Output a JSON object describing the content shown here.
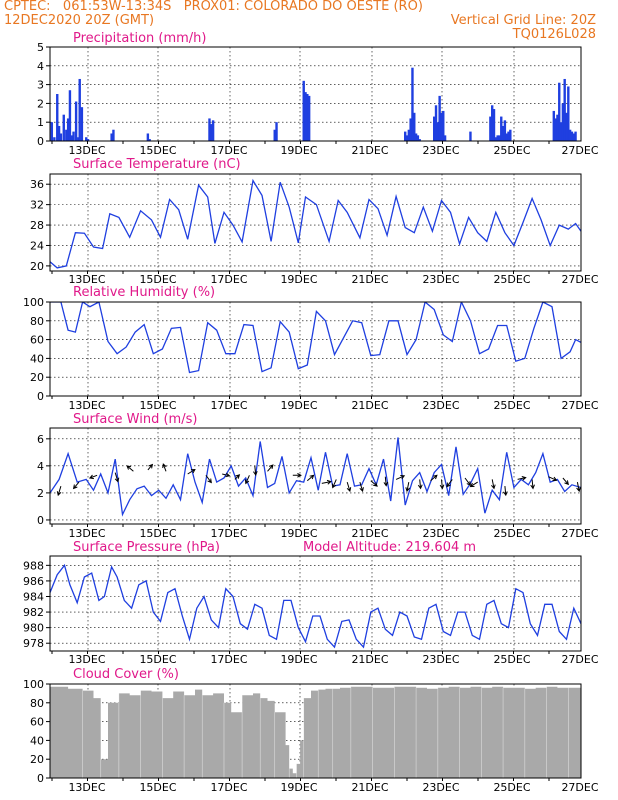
{
  "header": {
    "line1_left": "CPTEC:   061:53W-13:34S   PROX01: COLORADO DO OESTE (RO)",
    "line2_left": "12DEC2020 20Z (GMT)",
    "line2_right": "Vertical Grid Line: 20Z",
    "line3_right": "TQ0126L028"
  },
  "colors": {
    "accent": "#e87722",
    "title": "#e0198a",
    "series": "#1f3fe0",
    "cloud": "#a9a9a9"
  },
  "chart_data": [
    {
      "type": "bar",
      "title": "Precipitation (mm/h)",
      "ylim": [
        0,
        5
      ],
      "yticks": [
        0,
        1,
        2,
        3,
        4,
        5
      ],
      "xlim": [
        0,
        14.65
      ],
      "xticks": [
        "13DEC",
        "15DEC",
        "17DEC",
        "19DEC",
        "21DEC",
        "23DEC",
        "25DEC",
        "27DEC"
      ],
      "x": [
        0.05,
        0.12,
        0.2,
        0.25,
        0.3,
        0.38,
        0.45,
        0.5,
        0.55,
        0.6,
        0.65,
        0.72,
        0.78,
        0.82,
        0.88,
        1.0,
        1.05,
        1.7,
        1.75,
        2.7,
        2.75,
        4.4,
        4.45,
        4.5,
        6.2,
        6.25,
        7.0,
        7.05,
        7.1,
        7.15,
        9.8,
        9.85,
        9.9,
        9.95,
        10.0,
        10.05,
        10.1,
        10.15,
        10.2,
        10.6,
        10.65,
        10.7,
        10.75,
        10.8,
        10.85,
        10.9,
        11.6,
        12.15,
        12.2,
        12.25,
        12.3,
        12.35,
        12.4,
        12.45,
        12.5,
        12.55,
        12.6,
        12.65,
        12.7,
        13.9,
        13.95,
        14.0,
        14.05,
        14.1,
        14.15,
        14.2,
        14.25,
        14.3,
        14.35,
        14.4,
        14.45,
        14.5
      ],
      "values": [
        1.0,
        0.2,
        2.5,
        0.8,
        0.4,
        1.4,
        0.6,
        1.2,
        2.7,
        0.3,
        0.5,
        2.1,
        0.2,
        3.3,
        1.8,
        0.2,
        0.1,
        0.4,
        0.6,
        0.4,
        0.1,
        1.2,
        0.9,
        1.1,
        0.6,
        1.0,
        3.2,
        2.6,
        2.5,
        2.4,
        0.5,
        0.3,
        0.6,
        1.2,
        3.9,
        1.5,
        0.4,
        0.3,
        0.1,
        1.3,
        1.9,
        1.0,
        2.4,
        1.5,
        1.6,
        0.3,
        0.5,
        1.3,
        1.9,
        1.7,
        0.2,
        0.3,
        0.3,
        1.3,
        0.8,
        1.1,
        0.4,
        0.5,
        0.6,
        1.6,
        1.2,
        1.4,
        3.1,
        1.0,
        2.0,
        3.3,
        1.5,
        2.9,
        0.6,
        0.5,
        0.4,
        0.5
      ]
    },
    {
      "type": "line",
      "title": "Surface Temperature (nC)",
      "ylim": [
        19,
        38
      ],
      "yticks": [
        20,
        24,
        28,
        32,
        36
      ],
      "xlim": [
        0,
        14.65
      ],
      "xticks": [
        "13DEC",
        "15DEC",
        "17DEC",
        "19DEC",
        "21DEC",
        "23DEC",
        "25DEC",
        "27DEC"
      ],
      "x": [
        0,
        0.2,
        0.45,
        0.7,
        0.95,
        1.2,
        1.45,
        1.65,
        1.9,
        2.2,
        2.5,
        2.8,
        3.05,
        3.3,
        3.55,
        3.8,
        4.1,
        4.35,
        4.55,
        4.8,
        5.05,
        5.3,
        5.6,
        5.85,
        6.1,
        6.35,
        6.6,
        6.85,
        7.05,
        7.35,
        7.7,
        7.95,
        8.2,
        8.55,
        8.8,
        9.05,
        9.3,
        9.55,
        9.8,
        10.05,
        10.3,
        10.55,
        10.8,
        11.05,
        11.3,
        11.55,
        11.8,
        12.05,
        12.3,
        12.55,
        12.8,
        13.05,
        13.3,
        13.55,
        13.8,
        14.05,
        14.3,
        14.5,
        14.65
      ],
      "values": [
        20.8,
        19.6,
        20.0,
        26.5,
        26.4,
        23.7,
        23.4,
        30.2,
        29.5,
        25.6,
        30.8,
        29.0,
        25.6,
        33.0,
        31.0,
        25.2,
        35.8,
        33.5,
        24.4,
        30.5,
        28.0,
        24.7,
        36.7,
        33.8,
        24.8,
        36.4,
        31.5,
        24.5,
        33.5,
        32.0,
        24.8,
        32.8,
        30.5,
        25.5,
        33.0,
        31.2,
        26.0,
        33.6,
        27.5,
        26.5,
        31.5,
        26.8,
        32.8,
        30.5,
        24.3,
        29.5,
        26.5,
        24.8,
        30.5,
        26.5,
        24.0,
        28.5,
        33.2,
        29.0,
        24.0,
        28.0,
        27.2,
        28.3,
        26.8
      ]
    },
    {
      "type": "line",
      "title": "Relative Humidity (%)",
      "ylim": [
        0,
        100
      ],
      "yticks": [
        0,
        20,
        40,
        60,
        80,
        100
      ],
      "xlim": [
        0,
        14.65
      ],
      "xticks": [
        "13DEC",
        "15DEC",
        "17DEC",
        "19DEC",
        "21DEC",
        "23DEC",
        "25DEC",
        "27DEC"
      ],
      "x": [
        0,
        0.3,
        0.5,
        0.7,
        0.9,
        1.1,
        1.35,
        1.6,
        1.85,
        2.1,
        2.35,
        2.6,
        2.85,
        3.1,
        3.35,
        3.6,
        3.85,
        4.1,
        4.35,
        4.6,
        4.85,
        5.1,
        5.35,
        5.6,
        5.85,
        6.1,
        6.35,
        6.6,
        6.85,
        7.1,
        7.35,
        7.6,
        7.85,
        8.1,
        8.35,
        8.6,
        8.85,
        9.1,
        9.35,
        9.6,
        9.85,
        10.1,
        10.35,
        10.6,
        10.85,
        11.1,
        11.35,
        11.6,
        11.85,
        12.1,
        12.35,
        12.6,
        12.85,
        13.1,
        13.35,
        13.6,
        13.85,
        14.1,
        14.35,
        14.5,
        14.65
      ],
      "values": [
        100,
        100,
        70,
        68,
        100,
        95,
        100,
        58,
        45,
        52,
        68,
        76,
        45,
        50,
        72,
        73,
        25,
        27,
        78,
        70,
        45,
        45,
        76,
        75,
        26,
        30,
        79,
        68,
        29,
        33,
        90,
        80,
        44,
        62,
        80,
        78,
        43,
        44,
        80,
        80,
        44,
        60,
        100,
        92,
        65,
        58,
        100,
        80,
        45,
        50,
        75,
        75,
        37,
        40,
        72,
        100,
        95,
        40,
        47,
        60,
        57
      ]
    },
    {
      "type": "line",
      "title": "Surface Wind (m/s)",
      "ylim": [
        -0.3,
        6.8
      ],
      "yticks": [
        0,
        2,
        4,
        6
      ],
      "xlim": [
        0,
        14.65
      ],
      "xticks": [
        "13DEC",
        "15DEC",
        "17DEC",
        "19DEC",
        "21DEC",
        "23DEC",
        "25DEC",
        "27DEC"
      ],
      "x": [
        0,
        0.25,
        0.5,
        0.75,
        1.0,
        1.2,
        1.4,
        1.6,
        1.8,
        2.0,
        2.2,
        2.4,
        2.6,
        2.8,
        3.0,
        3.2,
        3.4,
        3.6,
        3.8,
        4.0,
        4.2,
        4.4,
        4.6,
        4.8,
        5.0,
        5.2,
        5.4,
        5.6,
        5.8,
        6.0,
        6.2,
        6.4,
        6.6,
        6.8,
        7.0,
        7.2,
        7.4,
        7.6,
        7.8,
        8.0,
        8.2,
        8.4,
        8.6,
        8.8,
        9.0,
        9.2,
        9.4,
        9.6,
        9.8,
        10.0,
        10.2,
        10.4,
        10.6,
        10.8,
        11.0,
        11.2,
        11.4,
        11.6,
        11.8,
        12.0,
        12.2,
        12.4,
        12.6,
        12.8,
        13.0,
        13.2,
        13.4,
        13.6,
        13.8,
        14.0,
        14.2,
        14.4,
        14.65
      ],
      "values": [
        2.0,
        3.0,
        4.9,
        2.8,
        3.0,
        2.2,
        3.4,
        2.0,
        4.5,
        0.4,
        1.5,
        2.3,
        2.5,
        1.8,
        2.2,
        1.6,
        2.6,
        1.5,
        4.9,
        2.8,
        1.3,
        4.5,
        2.8,
        3.1,
        4.0,
        2.5,
        3.1,
        1.8,
        5.8,
        2.4,
        2.7,
        4.7,
        2.0,
        2.9,
        2.8,
        4.6,
        2.2,
        5.0,
        2.5,
        2.6,
        4.9,
        2.5,
        2.6,
        3.8,
        2.6,
        4.5,
        1.4,
        6.1,
        1.1,
        2.9,
        3.5,
        2.1,
        3.5,
        4.1,
        1.8,
        5.4,
        1.9,
        2.7,
        3.8,
        0.5,
        2.2,
        1.5,
        5.0,
        2.4,
        3.0,
        2.6,
        3.5,
        4.9,
        2.8,
        3.0,
        2.1,
        2.6,
        2.4
      ],
      "arrows": [
        {
          "x": 0.3,
          "y": 2.5,
          "dx": -0.3,
          "dy": -1
        },
        {
          "x": 0.8,
          "y": 2.8,
          "dx": -0.6,
          "dy": -0.7
        },
        {
          "x": 1.3,
          "y": 3.3,
          "dx": -0.8,
          "dy": -0.3
        },
        {
          "x": 1.8,
          "y": 3.5,
          "dx": 0.3,
          "dy": -1
        },
        {
          "x": 2.3,
          "y": 3.6,
          "dx": -0.7,
          "dy": 0.6
        },
        {
          "x": 2.7,
          "y": 3.7,
          "dx": 0.5,
          "dy": 0.6
        },
        {
          "x": 3.2,
          "y": 3.6,
          "dx": -0.3,
          "dy": 0.8
        },
        {
          "x": 3.8,
          "y": 3.4,
          "dx": 0.8,
          "dy": 0.5
        },
        {
          "x": 4.3,
          "y": 3.3,
          "dx": 0.6,
          "dy": -0.8
        },
        {
          "x": 4.75,
          "y": 3.4,
          "dx": 0.8,
          "dy": -0.2
        },
        {
          "x": 5.1,
          "y": 3.0,
          "dx": 0.5,
          "dy": 0.5
        },
        {
          "x": 5.5,
          "y": 3.3,
          "dx": -0.4,
          "dy": -0.9
        },
        {
          "x": 5.65,
          "y": 4.0,
          "dx": 0.1,
          "dy": -1
        },
        {
          "x": 6.0,
          "y": 3.6,
          "dx": 0.6,
          "dy": 0.7
        },
        {
          "x": 6.7,
          "y": 3.3,
          "dx": 0.9,
          "dy": 0
        },
        {
          "x": 7.1,
          "y": 2.9,
          "dx": 0.7,
          "dy": 0.6
        },
        {
          "x": 7.5,
          "y": 2.7,
          "dx": 1,
          "dy": 0.2
        },
        {
          "x": 7.9,
          "y": 3.0,
          "dx": -0.4,
          "dy": -0.9
        },
        {
          "x": 8.2,
          "y": 2.8,
          "dx": 0.3,
          "dy": -1
        },
        {
          "x": 8.55,
          "y": 2.8,
          "dx": 0.3,
          "dy": -1
        },
        {
          "x": 8.85,
          "y": 2.9,
          "dx": 0.7,
          "dy": -0.6
        },
        {
          "x": 9.25,
          "y": 3.2,
          "dx": 0.1,
          "dy": -1
        },
        {
          "x": 9.55,
          "y": 3.0,
          "dx": 0.9,
          "dy": 0.4
        },
        {
          "x": 9.9,
          "y": 2.8,
          "dx": -0.2,
          "dy": -1
        },
        {
          "x": 10.2,
          "y": 3.0,
          "dx": 0.1,
          "dy": -1
        },
        {
          "x": 10.5,
          "y": 2.9,
          "dx": 0.7,
          "dy": 0.6
        },
        {
          "x": 10.8,
          "y": 3.0,
          "dx": 0.1,
          "dy": -1
        },
        {
          "x": 11.1,
          "y": 3.0,
          "dx": -0.6,
          "dy": -0.8
        },
        {
          "x": 11.45,
          "y": 3.1,
          "dx": 0.6,
          "dy": -0.8
        },
        {
          "x": 11.8,
          "y": 2.8,
          "dx": -0.8,
          "dy": -0.5
        },
        {
          "x": 12.2,
          "y": 3.0,
          "dx": 0.2,
          "dy": -1
        },
        {
          "x": 12.55,
          "y": 2.5,
          "dx": 0.1,
          "dy": -1
        },
        {
          "x": 12.9,
          "y": 3.0,
          "dx": 0.9,
          "dy": 0.2
        },
        {
          "x": 13.3,
          "y": 3.0,
          "dx": 0.1,
          "dy": -1
        },
        {
          "x": 13.75,
          "y": 3.2,
          "dx": 0.9,
          "dy": -0.4
        },
        {
          "x": 14.15,
          "y": 3.1,
          "dx": 0.6,
          "dy": -0.7
        },
        {
          "x": 14.55,
          "y": 2.8,
          "dx": 0.2,
          "dy": -1
        }
      ]
    },
    {
      "type": "line",
      "title": "Surface Pressure (hPa)",
      "subtitle": "Model Altitude: 219.604 m",
      "ylim": [
        977,
        989.2
      ],
      "yticks": [
        978,
        980,
        982,
        984,
        986,
        988
      ],
      "xlim": [
        0,
        14.65
      ],
      "xticks": [
        "13DEC",
        "15DEC",
        "17DEC",
        "19DEC",
        "21DEC",
        "23DEC",
        "25DEC",
        "27DEC"
      ],
      "x": [
        0,
        0.2,
        0.4,
        0.55,
        0.75,
        0.95,
        1.15,
        1.35,
        1.5,
        1.7,
        1.85,
        2.05,
        2.25,
        2.45,
        2.65,
        2.85,
        3.05,
        3.25,
        3.45,
        3.65,
        3.85,
        4.05,
        4.25,
        4.45,
        4.65,
        4.85,
        5.05,
        5.25,
        5.45,
        5.65,
        5.85,
        6.05,
        6.25,
        6.45,
        6.65,
        6.85,
        7.05,
        7.25,
        7.45,
        7.65,
        7.85,
        8.05,
        8.25,
        8.45,
        8.65,
        8.85,
        9.05,
        9.25,
        9.45,
        9.65,
        9.85,
        10.05,
        10.25,
        10.45,
        10.65,
        10.85,
        11.05,
        11.25,
        11.45,
        11.65,
        11.85,
        12.05,
        12.25,
        12.45,
        12.65,
        12.85,
        13.05,
        13.25,
        13.45,
        13.65,
        13.85,
        14.05,
        14.25,
        14.45,
        14.65
      ],
      "values": [
        984.5,
        986.8,
        988.0,
        985.5,
        983.2,
        986.5,
        987.0,
        983.5,
        984.0,
        987.8,
        986.5,
        983.5,
        982.5,
        985.5,
        986.0,
        982.0,
        980.8,
        984.5,
        985.0,
        981.5,
        978.5,
        982.5,
        984.0,
        981.0,
        980.0,
        985.0,
        984.0,
        980.5,
        979.8,
        983.0,
        982.5,
        979.0,
        978.5,
        983.5,
        983.5,
        980.0,
        978.2,
        981.5,
        981.5,
        978.5,
        977.5,
        980.8,
        981.0,
        978.5,
        977.5,
        982.0,
        982.5,
        979.8,
        979.0,
        982.0,
        981.5,
        978.8,
        978.5,
        982.5,
        983.0,
        979.5,
        979.0,
        982.0,
        982.0,
        979.0,
        978.5,
        983.0,
        983.5,
        980.5,
        980.0,
        985.0,
        984.5,
        980.5,
        979.0,
        983.0,
        983.0,
        979.5,
        978.5,
        982.5,
        980.5
      ]
    },
    {
      "type": "bar",
      "title": "Cloud Cover (%)",
      "ylim": [
        0,
        100
      ],
      "yticks": [
        0,
        20,
        40,
        60,
        80,
        100
      ],
      "xlim": [
        0,
        14.65
      ],
      "xticks": [
        "13DEC",
        "15DEC",
        "17DEC",
        "19DEC",
        "21DEC",
        "23DEC",
        "25DEC",
        "27DEC"
      ],
      "x": [
        0,
        0.5,
        0.9,
        1.2,
        1.4,
        1.6,
        1.9,
        2.2,
        2.5,
        2.8,
        3.1,
        3.4,
        3.7,
        4.0,
        4.2,
        4.5,
        4.8,
        5.0,
        5.3,
        5.6,
        5.8,
        6.0,
        6.2,
        6.5,
        6.6,
        6.7,
        6.8,
        6.9,
        7.0,
        7.2,
        7.4,
        7.6,
        7.8,
        8.0,
        8.3,
        8.6,
        8.9,
        9.2,
        9.5,
        9.8,
        10.1,
        10.4,
        10.7,
        11.0,
        11.3,
        11.6,
        11.9,
        12.2,
        12.5,
        12.8,
        13.1,
        13.4,
        13.7,
        14.0,
        14.3,
        14.65
      ],
      "values": [
        97,
        95,
        93,
        85,
        20,
        80,
        90,
        88,
        93,
        92,
        85,
        92,
        88,
        94,
        88,
        90,
        80,
        70,
        88,
        90,
        85,
        82,
        70,
        35,
        10,
        5,
        15,
        40,
        85,
        93,
        94,
        95,
        95,
        96,
        97,
        97,
        96,
        96,
        97,
        97,
        96,
        95,
        96,
        97,
        96,
        97,
        96,
        97,
        96,
        96,
        95,
        96,
        97,
        96,
        96,
        97
      ]
    }
  ]
}
